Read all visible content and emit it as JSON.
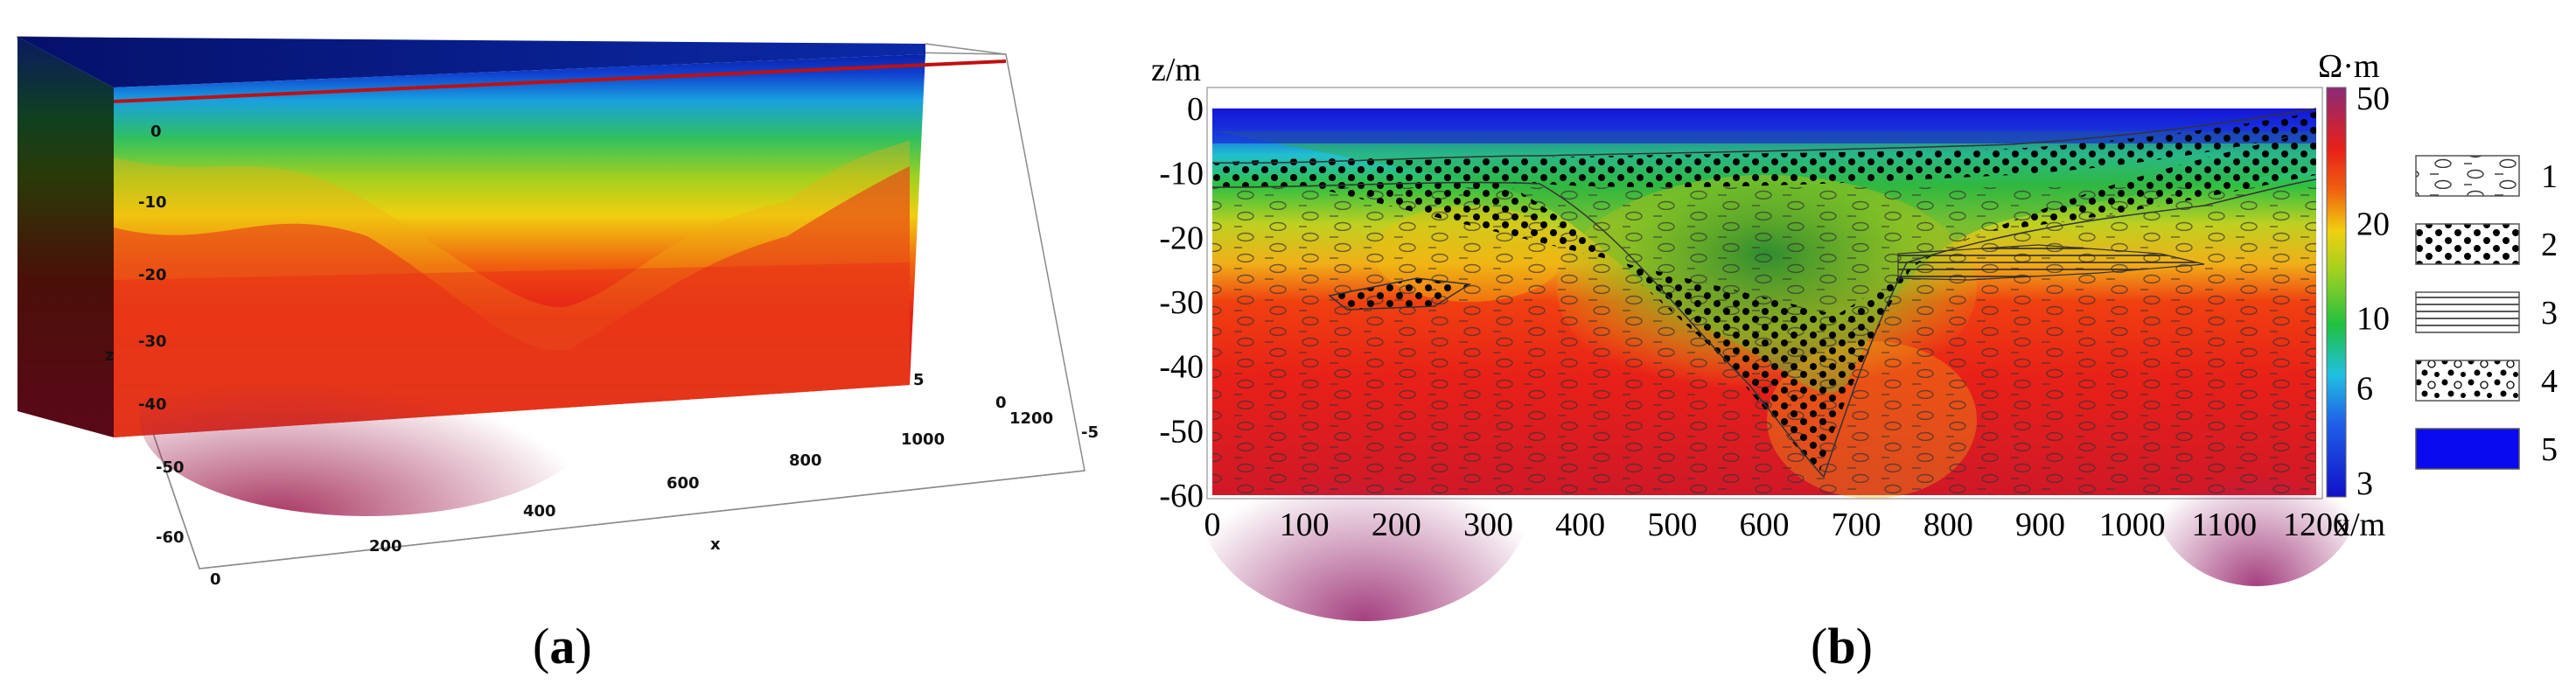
{
  "figure": {
    "caption_a": "a",
    "caption_b": "b"
  },
  "panel_a": {
    "axis_x_label": "x",
    "axis_z_label": "z",
    "x_ticks": [
      "0",
      "200",
      "400",
      "600",
      "800",
      "1000",
      "1200"
    ],
    "z_ticks_slice": [
      "0",
      "-10",
      "-20",
      "-30",
      "-40"
    ],
    "z_ticks_box": [
      "-50",
      "-60"
    ],
    "y_ticks": [
      "5",
      "0",
      "-5"
    ]
  },
  "panel_b": {
    "axis_z_label": "z/m",
    "axis_x_label": "x/m",
    "colorbar_unit": "Ω·m",
    "colorbar_ticks": [
      "50",
      "20",
      "10",
      "6",
      "3"
    ],
    "colorbar_values": [
      50,
      20,
      10,
      6,
      3
    ],
    "colorbar_scale": "log",
    "legend": [
      {
        "label": "1",
        "pattern": "clay-lens"
      },
      {
        "label": "2",
        "pattern": "dots"
      },
      {
        "label": "3",
        "pattern": "horizontal-lines"
      },
      {
        "label": "4",
        "pattern": "dots-and-circles"
      },
      {
        "label": "5",
        "pattern": "solid-blue"
      }
    ],
    "colors": {
      "low": "#1414d2",
      "mid": "#30c030",
      "high": "#e82018",
      "max": "#8a2a70"
    }
  },
  "chart_data": [
    {
      "type": "heatmap",
      "panel": "a",
      "title": "",
      "xlabel": "x",
      "ylabel": "z",
      "x_ticks": [
        0,
        200,
        400,
        600,
        800,
        1000,
        1200
      ],
      "z_ticks": [
        0,
        -10,
        -20,
        -30,
        -40,
        -50,
        -60
      ],
      "xlim": [
        0,
        1200
      ],
      "zlim": [
        -60,
        0
      ],
      "value_range": [
        3,
        50
      ],
      "value_scale": "log",
      "grid": false
    },
    {
      "type": "heatmap",
      "panel": "b",
      "title": "",
      "xlabel": "x/m",
      "ylabel": "z/m",
      "x_ticks": [
        0,
        100,
        200,
        300,
        400,
        500,
        600,
        700,
        800,
        900,
        1000,
        1100,
        1200
      ],
      "y_ticks": [
        0,
        -10,
        -20,
        -30,
        -40,
        -50,
        -60
      ],
      "xlim": [
        0,
        1200
      ],
      "ylim": [
        -60,
        0
      ],
      "colorbar_label": "Ω·m",
      "colorbar_ticks": [
        50,
        20,
        10,
        6,
        3
      ],
      "value_range": [
        3,
        50
      ],
      "value_scale": "log",
      "grid": false,
      "legend_entries": [
        "1",
        "2",
        "3",
        "4",
        "5"
      ],
      "legend_position": "right"
    }
  ]
}
